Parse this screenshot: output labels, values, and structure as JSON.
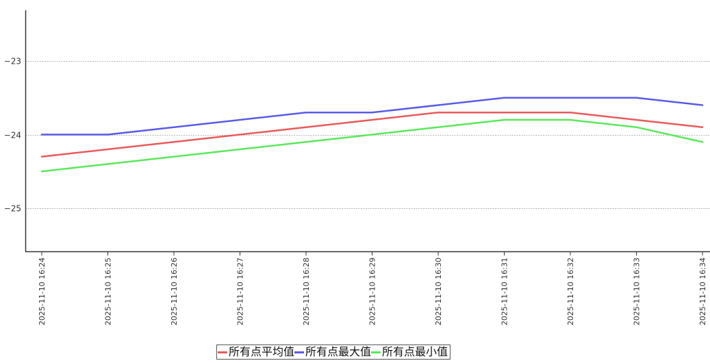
{
  "chart_data": {
    "type": "line",
    "title": "",
    "xlabel": "",
    "ylabel": "",
    "categories": [
      "2025-11-10 16:24",
      "2025-11-10 16:25",
      "2025-11-10 16:26",
      "2025-11-10 16:27",
      "2025-11-10 16:28",
      "2025-11-10 16:29",
      "2025-11-10 16:30",
      "2025-11-10 16:31",
      "2025-11-10 16:32",
      "2025-11-10 16:33",
      "2025-11-10 16:34"
    ],
    "ylim": [
      -25.6,
      -22.3
    ],
    "yticks": [
      -23,
      -24,
      -25
    ],
    "ytick_labels": [
      "−23",
      "−24",
      "−25"
    ],
    "grid": true,
    "legend_position": "bottom-center",
    "series": [
      {
        "name": "所有点平均值",
        "color": "#e85a5a",
        "values": [
          -24.3,
          -24.2,
          -24.1,
          -24.0,
          -23.9,
          -23.8,
          -23.7,
          -23.7,
          -23.7,
          -23.8,
          -23.9
        ]
      },
      {
        "name": "所有点最大值",
        "color": "#5a5ae8",
        "values": [
          -24.0,
          -24.0,
          -23.9,
          -23.8,
          -23.7,
          -23.7,
          -23.6,
          -23.5,
          -23.5,
          -23.5,
          -23.6
        ]
      },
      {
        "name": "所有点最小值",
        "color": "#5ae85a",
        "values": [
          -24.5,
          -24.4,
          -24.3,
          -24.2,
          -24.1,
          -24.0,
          -23.9,
          -23.8,
          -23.8,
          -23.9,
          -24.1
        ]
      }
    ]
  }
}
